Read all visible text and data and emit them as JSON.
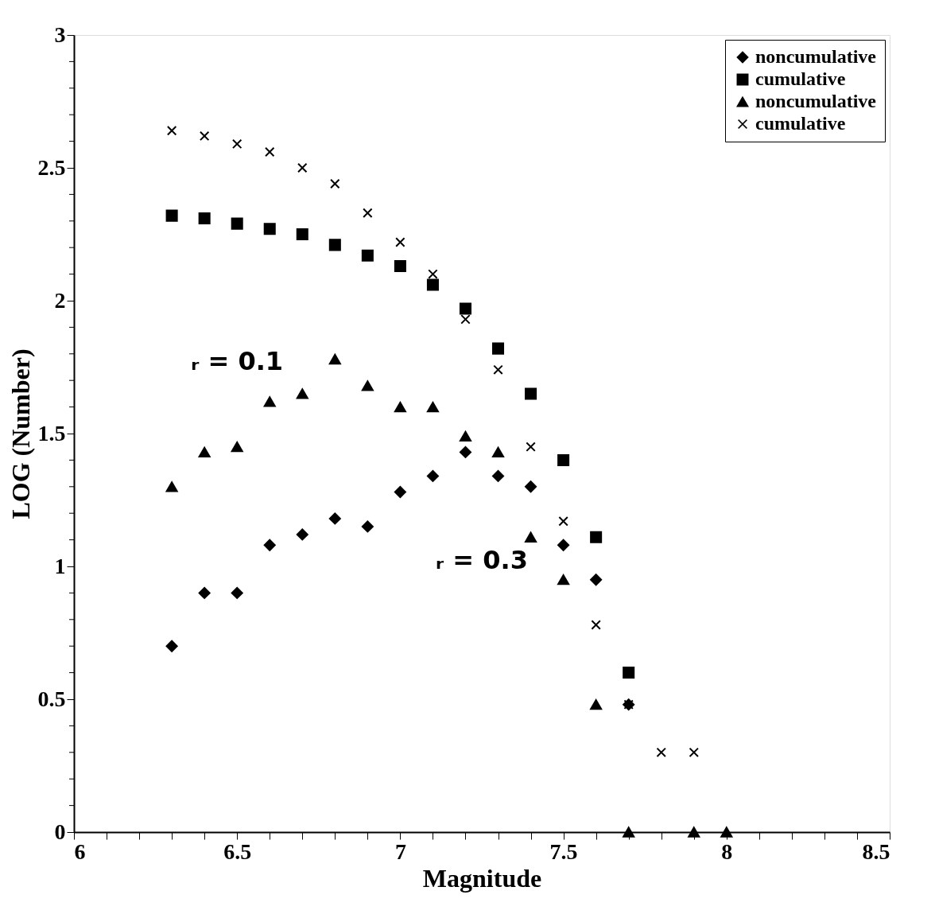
{
  "chart_data": {
    "type": "scatter",
    "xlabel": "Magnitude",
    "ylabel": "LOG (Number)",
    "x": [
      6.3,
      6.4,
      6.5,
      6.6,
      6.7,
      6.8,
      6.9,
      7.0,
      7.1,
      7.2,
      7.3,
      7.4,
      7.5,
      7.6,
      7.7,
      7.8,
      7.9,
      8.0
    ],
    "series": [
      {
        "name": "noncumulative",
        "color": "#000000",
        "marker": "diamond",
        "values": [
          0.7,
          0.9,
          0.9,
          1.08,
          1.12,
          1.18,
          1.15,
          1.28,
          1.34,
          1.43,
          1.34,
          1.3,
          1.08,
          0.95,
          0.48,
          null,
          null,
          null
        ]
      },
      {
        "name": "cumulative",
        "color": "#000000",
        "marker": "square",
        "values": [
          2.32,
          2.31,
          2.29,
          2.27,
          2.25,
          2.21,
          2.17,
          2.13,
          2.06,
          1.97,
          1.82,
          1.65,
          1.4,
          1.11,
          0.6,
          null,
          null,
          null
        ]
      },
      {
        "name": "noncumulative",
        "color": "#000000",
        "marker": "triangle",
        "values": [
          1.3,
          1.43,
          1.45,
          1.62,
          1.65,
          1.78,
          1.68,
          1.6,
          1.6,
          1.49,
          1.43,
          1.11,
          0.95,
          0.48,
          0,
          null,
          0,
          0
        ]
      },
      {
        "name": "cumulative",
        "color": "#000000",
        "marker": "cross",
        "values": [
          2.64,
          2.62,
          2.59,
          2.56,
          2.5,
          2.44,
          2.33,
          2.22,
          2.1,
          1.93,
          1.74,
          1.45,
          1.17,
          0.78,
          0.48,
          0.3,
          0.3,
          null
        ]
      }
    ],
    "annotations": [
      "ᵣ = 0.1",
      "ᵣ = 0.3"
    ],
    "xlim": [
      6,
      8.5
    ],
    "xticks": [
      6,
      {
        "value": 6.1,
        "label": null
      },
      {
        "value": 6.2,
        "label": null
      },
      {
        "value": 6.3,
        "label": null
      },
      {
        "value": 6.4,
        "label": null
      },
      6.5,
      {
        "value": 6.6,
        "label": null
      },
      {
        "value": 6.7,
        "label": null
      },
      {
        "value": 6.8,
        "label": null
      },
      {
        "value": 6.9,
        "label": null
      },
      7,
      {
        "value": 7.1,
        "label": null
      },
      {
        "value": 7.2,
        "label": null
      },
      {
        "value": 7.3,
        "label": null
      },
      {
        "value": 7.4,
        "label": null
      },
      7.5,
      {
        "value": 7.6,
        "label": null
      },
      {
        "value": 7.7,
        "label": null
      },
      {
        "value": 7.8,
        "label": null
      },
      {
        "value": 7.9,
        "label": null
      },
      8,
      {
        "value": 8.1,
        "label": null
      },
      {
        "value": 8.2,
        "label": null
      },
      {
        "value": 8.3,
        "label": null
      },
      {
        "value": 8.4,
        "label": null
      },
      8.5
    ],
    "ylim": [
      0,
      3
    ],
    "yticks": [
      0,
      {
        "value": 0.1,
        "label": null
      },
      {
        "value": 0.2,
        "label": null
      },
      {
        "value": 0.3,
        "label": null
      },
      {
        "value": 0.4,
        "label": null
      },
      0.5,
      {
        "value": 0.6,
        "label": null
      },
      {
        "value": 0.7,
        "label": null
      },
      {
        "value": 0.8,
        "label": null
      },
      {
        "value": 0.9,
        "label": null
      },
      1,
      {
        "value": 1.1,
        "label": null
      },
      {
        "value": 1.2,
        "label": null
      },
      {
        "value": 1.3,
        "label": null
      },
      {
        "value": 1.4,
        "label": null
      },
      1.5,
      {
        "value": 1.6,
        "label": null
      },
      {
        "value": 1.7,
        "label": null
      },
      {
        "value": 1.8,
        "label": null
      },
      {
        "value": 1.9,
        "label": null
      },
      2,
      {
        "value": 2.1,
        "label": null
      },
      {
        "value": 2.2,
        "label": null
      },
      {
        "value": 2.3,
        "label": null
      },
      {
        "value": 2.4,
        "label": null
      },
      2.5,
      {
        "value": 2.6,
        "label": null
      },
      {
        "value": 2.7,
        "label": null
      },
      {
        "value": 2.8,
        "label": null
      },
      {
        "value": 2.9,
        "label": null
      },
      3
    ],
    "grid": false,
    "legend": "top right"
  }
}
